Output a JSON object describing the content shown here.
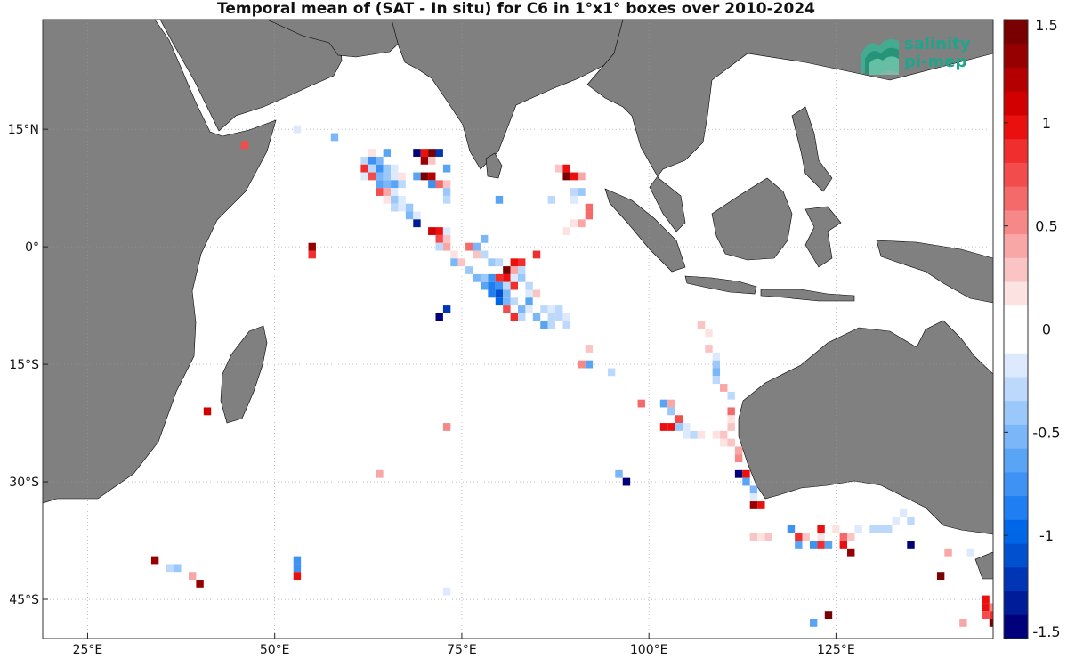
{
  "title": "Temporal mean of (SAT - In situ) for C6 in 1°x1° boxes over 2010-2024",
  "logo": {
    "line1": "salinity",
    "line2": "pi-mep"
  },
  "map": {
    "lon_range": [
      19,
      146
    ],
    "lat_range": [
      -50,
      29
    ],
    "land_color": "#808080",
    "grid": "dotted",
    "lon_ticks": [
      {
        "value": 25,
        "label": "25°E"
      },
      {
        "value": 50,
        "label": "50°E"
      },
      {
        "value": 75,
        "label": "75°E"
      },
      {
        "value": 100,
        "label": "100°E"
      },
      {
        "value": 125,
        "label": "125°E"
      }
    ],
    "lat_ticks": [
      {
        "value": 15,
        "label": "15°N"
      },
      {
        "value": 0,
        "label": "0°"
      },
      {
        "value": -15,
        "label": "15°S"
      },
      {
        "value": -30,
        "label": "30°S"
      },
      {
        "value": -45,
        "label": "45°S"
      }
    ]
  },
  "colorbar": {
    "range": [
      -1.5,
      1.5
    ],
    "ticks": [
      {
        "value": 1.5,
        "label": "1.5"
      },
      {
        "value": 1,
        "label": "1"
      },
      {
        "value": 0.5,
        "label": "0.5"
      },
      {
        "value": 0,
        "label": "0"
      },
      {
        "value": -0.5,
        "label": "-0.5"
      },
      {
        "value": -1,
        "label": "-1"
      },
      {
        "value": -1.5,
        "label": "-1.5"
      }
    ],
    "colors": [
      "#00007a",
      "#001c98",
      "#0035b6",
      "#0050d0",
      "#0066e8",
      "#1f7ef2",
      "#3d92f4",
      "#5aa4f6",
      "#7ab6f8",
      "#9ac8fa",
      "#bcd9fc",
      "#dde9fd",
      "#ffffff",
      "#ffffff",
      "#fde2e2",
      "#fbc4c4",
      "#f8a6a6",
      "#f68888",
      "#f46a6a",
      "#f24c4c",
      "#f02e2e",
      "#ea1010",
      "#d20000",
      "#b40000",
      "#960000",
      "#780000"
    ]
  },
  "chart_data": {
    "type": "heatmap",
    "title": "Temporal mean of (SAT - In situ) for C6 in 1°x1° boxes over 2010-2024",
    "units": "1°x1° boxes",
    "range": [
      -1.5,
      1.5
    ],
    "cells": [
      {
        "lon": 46,
        "lat": 13,
        "v": 0.7
      },
      {
        "lon": 53,
        "lat": 15,
        "v": -0.2
      },
      {
        "lon": 58,
        "lat": 14,
        "v": -0.5
      },
      {
        "lon": 62,
        "lat": 12,
        "v": -0.1
      },
      {
        "lon": 63,
        "lat": 12,
        "v": 0.2
      },
      {
        "lon": 65,
        "lat": 12,
        "v": -0.6
      },
      {
        "lon": 62,
        "lat": 11,
        "v": -0.3
      },
      {
        "lon": 63,
        "lat": 11,
        "v": -0.7
      },
      {
        "lon": 64,
        "lat": 11,
        "v": -0.5
      },
      {
        "lon": 62,
        "lat": 10,
        "v": 0.9
      },
      {
        "lon": 63,
        "lat": 10,
        "v": -0.3
      },
      {
        "lon": 64,
        "lat": 10,
        "v": -0.8
      },
      {
        "lon": 65,
        "lat": 10,
        "v": -0.4
      },
      {
        "lon": 66,
        "lat": 10,
        "v": -0.2
      },
      {
        "lon": 62,
        "lat": 9,
        "v": -0.2
      },
      {
        "lon": 63,
        "lat": 9,
        "v": 0.8
      },
      {
        "lon": 64,
        "lat": 9,
        "v": -0.5
      },
      {
        "lon": 65,
        "lat": 9,
        "v": -0.4
      },
      {
        "lon": 66,
        "lat": 9,
        "v": -0.2
      },
      {
        "lon": 67,
        "lat": 9,
        "v": 0.2
      },
      {
        "lon": 64,
        "lat": 8,
        "v": -0.6
      },
      {
        "lon": 65,
        "lat": 8,
        "v": -0.5
      },
      {
        "lon": 66,
        "lat": 8,
        "v": -0.6
      },
      {
        "lon": 67,
        "lat": 8,
        "v": -0.3
      },
      {
        "lon": 64,
        "lat": 7,
        "v": 0.8
      },
      {
        "lon": 65,
        "lat": 7,
        "v": 0.4
      },
      {
        "lon": 66,
        "lat": 7,
        "v": -0.2
      },
      {
        "lon": 65,
        "lat": 6,
        "v": 0.2
      },
      {
        "lon": 66,
        "lat": 6,
        "v": -0.4
      },
      {
        "lon": 67,
        "lat": 6,
        "v": -0.2
      },
      {
        "lon": 66,
        "lat": 5,
        "v": -0.3
      },
      {
        "lon": 67,
        "lat": 5,
        "v": -0.2
      },
      {
        "lon": 68,
        "lat": 5,
        "v": -0.4
      },
      {
        "lon": 68,
        "lat": 4,
        "v": -0.5
      },
      {
        "lon": 69,
        "lat": 4,
        "v": -0.2
      },
      {
        "lon": 68,
        "lat": 3,
        "v": -0.1
      },
      {
        "lon": 69,
        "lat": 3,
        "v": -1.3
      },
      {
        "lon": 69,
        "lat": 12,
        "v": -1.4
      },
      {
        "lon": 70,
        "lat": 12,
        "v": 1.0
      },
      {
        "lon": 71,
        "lat": 12,
        "v": 1.4
      },
      {
        "lon": 72,
        "lat": 12,
        "v": -1.2
      },
      {
        "lon": 70,
        "lat": 11,
        "v": 1.3
      },
      {
        "lon": 71,
        "lat": 11,
        "v": 0.3
      },
      {
        "lon": 73,
        "lat": 10,
        "v": -0.6
      },
      {
        "lon": 69,
        "lat": 9,
        "v": -0.6
      },
      {
        "lon": 70,
        "lat": 9,
        "v": 1.4
      },
      {
        "lon": 71,
        "lat": 9,
        "v": 1.2
      },
      {
        "lon": 71,
        "lat": 8,
        "v": -0.8
      },
      {
        "lon": 72,
        "lat": 8,
        "v": 0.6
      },
      {
        "lon": 73,
        "lat": 8,
        "v": 0.3
      },
      {
        "lon": 73,
        "lat": 7,
        "v": -0.4
      },
      {
        "lon": 73,
        "lat": 6,
        "v": -0.3
      },
      {
        "lon": 71,
        "lat": 2,
        "v": 1.1
      },
      {
        "lon": 72,
        "lat": 2,
        "v": 1.0
      },
      {
        "lon": 72,
        "lat": 1,
        "v": 0.8
      },
      {
        "lon": 73,
        "lat": 1,
        "v": 0.3
      },
      {
        "lon": 73,
        "lat": 2,
        "v": -0.2
      },
      {
        "lon": 72,
        "lat": 0,
        "v": -0.3
      },
      {
        "lon": 73,
        "lat": 0,
        "v": 0.4
      },
      {
        "lon": 74,
        "lat": -1,
        "v": 0.2
      },
      {
        "lon": 74,
        "lat": -2,
        "v": -0.5
      },
      {
        "lon": 75,
        "lat": -2,
        "v": 0.3
      },
      {
        "lon": 76,
        "lat": 0,
        "v": 0.6
      },
      {
        "lon": 77,
        "lat": -1,
        "v": 0.3
      },
      {
        "lon": 77,
        "lat": 0,
        "v": -0.5
      },
      {
        "lon": 78,
        "lat": 1,
        "v": -0.5
      },
      {
        "lon": 78,
        "lat": -1,
        "v": -0.3
      },
      {
        "lon": 79,
        "lat": -2,
        "v": -0.4
      },
      {
        "lon": 80,
        "lat": -2,
        "v": -0.3
      },
      {
        "lon": 82,
        "lat": -2,
        "v": 1.0
      },
      {
        "lon": 83,
        "lat": -2,
        "v": 0.9
      },
      {
        "lon": 81,
        "lat": -3,
        "v": 1.4
      },
      {
        "lon": 82,
        "lat": -3,
        "v": 0.4
      },
      {
        "lon": 83,
        "lat": -3,
        "v": -0.3
      },
      {
        "lon": 76,
        "lat": -3,
        "v": -0.4
      },
      {
        "lon": 77,
        "lat": -4,
        "v": -0.5
      },
      {
        "lon": 78,
        "lat": -4,
        "v": -0.4
      },
      {
        "lon": 79,
        "lat": -4,
        "v": -0.8
      },
      {
        "lon": 80,
        "lat": -4,
        "v": 0.9
      },
      {
        "lon": 81,
        "lat": -4,
        "v": 1.0
      },
      {
        "lon": 82,
        "lat": -4,
        "v": -0.2
      },
      {
        "lon": 83,
        "lat": -4,
        "v": -0.4
      },
      {
        "lon": 78,
        "lat": -5,
        "v": -0.6
      },
      {
        "lon": 79,
        "lat": -5,
        "v": -0.9
      },
      {
        "lon": 80,
        "lat": -5,
        "v": -0.7
      },
      {
        "lon": 81,
        "lat": -5,
        "v": -0.3
      },
      {
        "lon": 82,
        "lat": -5,
        "v": 0.9
      },
      {
        "lon": 84,
        "lat": -5,
        "v": -0.3
      },
      {
        "lon": 79,
        "lat": -6,
        "v": -0.9
      },
      {
        "lon": 80,
        "lat": -6,
        "v": -1.1
      },
      {
        "lon": 81,
        "lat": -6,
        "v": -0.5
      },
      {
        "lon": 84,
        "lat": -6,
        "v": -0.2
      },
      {
        "lon": 85,
        "lat": -6,
        "v": 0.3
      },
      {
        "lon": 80,
        "lat": -7,
        "v": -1.0
      },
      {
        "lon": 81,
        "lat": -7,
        "v": -0.5
      },
      {
        "lon": 82,
        "lat": -7,
        "v": -0.3
      },
      {
        "lon": 84,
        "lat": -7,
        "v": -0.6
      },
      {
        "lon": 85,
        "lat": -7,
        "v": -0.1
      },
      {
        "lon": 83,
        "lat": -8,
        "v": -0.5
      },
      {
        "lon": 84,
        "lat": -8,
        "v": -0.2
      },
      {
        "lon": 85,
        "lat": -8,
        "v": -0.1
      },
      {
        "lon": 86,
        "lat": -8,
        "v": -0.3
      },
      {
        "lon": 87,
        "lat": -8,
        "v": -0.2
      },
      {
        "lon": 88,
        "lat": -8,
        "v": -0.3
      },
      {
        "lon": 83,
        "lat": -9,
        "v": -0.3
      },
      {
        "lon": 85,
        "lat": -9,
        "v": -0.5
      },
      {
        "lon": 87,
        "lat": -9,
        "v": -0.3
      },
      {
        "lon": 88,
        "lat": -9,
        "v": -0.3
      },
      {
        "lon": 89,
        "lat": -9,
        "v": -0.2
      },
      {
        "lon": 86,
        "lat": -10,
        "v": -0.6
      },
      {
        "lon": 87,
        "lat": -10,
        "v": -0.3
      },
      {
        "lon": 89,
        "lat": -10,
        "v": -0.3
      },
      {
        "lon": 82,
        "lat": -9,
        "v": 0.9
      },
      {
        "lon": 81,
        "lat": -8,
        "v": 0.7
      },
      {
        "lon": 73,
        "lat": -8,
        "v": -1.2
      },
      {
        "lon": 72,
        "lat": -9,
        "v": -1.4
      },
      {
        "lon": 88,
        "lat": 10,
        "v": 0.3
      },
      {
        "lon": 89,
        "lat": 10,
        "v": 1.0
      },
      {
        "lon": 89,
        "lat": 9,
        "v": 1.4
      },
      {
        "lon": 90,
        "lat": 9,
        "v": 1.0
      },
      {
        "lon": 91,
        "lat": 9,
        "v": 0.4
      },
      {
        "lon": 90,
        "lat": 7,
        "v": -0.3
      },
      {
        "lon": 91,
        "lat": 7,
        "v": -0.4
      },
      {
        "lon": 86,
        "lat": 6,
        "v": -0.1
      },
      {
        "lon": 87,
        "lat": 6,
        "v": -0.3
      },
      {
        "lon": 90,
        "lat": 6,
        "v": -0.2
      },
      {
        "lon": 92,
        "lat": 5,
        "v": 0.6
      },
      {
        "lon": 92,
        "lat": 4,
        "v": 0.6
      },
      {
        "lon": 91,
        "lat": 3,
        "v": 0.4
      },
      {
        "lon": 89,
        "lat": 2,
        "v": 0.2
      },
      {
        "lon": 90,
        "lat": 3,
        "v": 0.2
      },
      {
        "lon": 80,
        "lat": 6,
        "v": -0.6
      },
      {
        "lon": 85,
        "lat": -1,
        "v": 0.9
      },
      {
        "lon": 92,
        "lat": -13,
        "v": 0.3
      },
      {
        "lon": 91,
        "lat": -15,
        "v": 0.5
      },
      {
        "lon": 92,
        "lat": -15,
        "v": -0.6
      },
      {
        "lon": 95,
        "lat": -16,
        "v": -0.3
      },
      {
        "lon": 98,
        "lat": -19,
        "v": -0.1
      },
      {
        "lon": 99,
        "lat": -20,
        "v": 0.6
      },
      {
        "lon": 96,
        "lat": -29,
        "v": -0.5
      },
      {
        "lon": 97,
        "lat": -30,
        "v": -1.4
      },
      {
        "lon": 102,
        "lat": -20,
        "v": -0.6
      },
      {
        "lon": 103,
        "lat": -20,
        "v": 0.4
      },
      {
        "lon": 103,
        "lat": -21,
        "v": -0.4
      },
      {
        "lon": 104,
        "lat": -22,
        "v": 0.8
      },
      {
        "lon": 102,
        "lat": -23,
        "v": 1.0
      },
      {
        "lon": 103,
        "lat": -23,
        "v": 1.0
      },
      {
        "lon": 104,
        "lat": -23,
        "v": -0.4
      },
      {
        "lon": 105,
        "lat": -23,
        "v": -0.2
      },
      {
        "lon": 105,
        "lat": -24,
        "v": -0.2
      },
      {
        "lon": 106,
        "lat": -24,
        "v": -0.3
      },
      {
        "lon": 107,
        "lat": -24,
        "v": 0.2
      },
      {
        "lon": 108,
        "lat": -25,
        "v": 0.1
      },
      {
        "lon": 109,
        "lat": -24,
        "v": 0.2
      },
      {
        "lon": 110,
        "lat": -25,
        "v": 0.2
      },
      {
        "lon": 110,
        "lat": -24,
        "v": 0.3
      },
      {
        "lon": 107,
        "lat": -10,
        "v": 0.3
      },
      {
        "lon": 108,
        "lat": -11,
        "v": 0.2
      },
      {
        "lon": 108,
        "lat": -12,
        "v": -0.1
      },
      {
        "lon": 108,
        "lat": -13,
        "v": 0.3
      },
      {
        "lon": 109,
        "lat": -14,
        "v": -0.2
      },
      {
        "lon": 109,
        "lat": -15,
        "v": -0.4
      },
      {
        "lon": 109,
        "lat": -16,
        "v": -0.5
      },
      {
        "lon": 109,
        "lat": -17,
        "v": -0.3
      },
      {
        "lon": 110,
        "lat": -18,
        "v": 0.4
      },
      {
        "lon": 111,
        "lat": -19,
        "v": -0.3
      },
      {
        "lon": 111,
        "lat": -21,
        "v": 0.6
      },
      {
        "lon": 111,
        "lat": -22,
        "v": 0.2
      },
      {
        "lon": 111,
        "lat": -23,
        "v": 0.3
      },
      {
        "lon": 111,
        "lat": -25,
        "v": 0.3
      },
      {
        "lon": 112,
        "lat": -26,
        "v": 0.4
      },
      {
        "lon": 112,
        "lat": -27,
        "v": 0.5
      },
      {
        "lon": 112,
        "lat": -29,
        "v": -1.4
      },
      {
        "lon": 113,
        "lat": -29,
        "v": 1.0
      },
      {
        "lon": 113,
        "lat": -30,
        "v": -0.6
      },
      {
        "lon": 114,
        "lat": -31,
        "v": -0.5
      },
      {
        "lon": 114,
        "lat": -33,
        "v": 1.3
      },
      {
        "lon": 115,
        "lat": -33,
        "v": 1.0
      },
      {
        "lon": 114,
        "lat": -32,
        "v": -0.2
      },
      {
        "lon": 114,
        "lat": -37,
        "v": 0.3
      },
      {
        "lon": 115,
        "lat": -37,
        "v": 0.2
      },
      {
        "lon": 116,
        "lat": -37,
        "v": 0.3
      },
      {
        "lon": 119,
        "lat": -36,
        "v": -0.7
      },
      {
        "lon": 120,
        "lat": -37,
        "v": 0.9
      },
      {
        "lon": 120,
        "lat": -38,
        "v": -0.6
      },
      {
        "lon": 121,
        "lat": -37,
        "v": 0.3
      },
      {
        "lon": 122,
        "lat": -38,
        "v": -0.7
      },
      {
        "lon": 123,
        "lat": -38,
        "v": 0.9
      },
      {
        "lon": 123,
        "lat": -36,
        "v": 1.0
      },
      {
        "lon": 124,
        "lat": -38,
        "v": -0.6
      },
      {
        "lon": 123,
        "lat": -37,
        "v": 0.2
      },
      {
        "lon": 125,
        "lat": -36,
        "v": 0.2
      },
      {
        "lon": 126,
        "lat": -37,
        "v": 0.6
      },
      {
        "lon": 126,
        "lat": -38,
        "v": 1.0
      },
      {
        "lon": 127,
        "lat": -37,
        "v": 0.3
      },
      {
        "lon": 127,
        "lat": -39,
        "v": 1.3
      },
      {
        "lon": 128,
        "lat": -36,
        "v": -0.2
      },
      {
        "lon": 130,
        "lat": -36,
        "v": -0.3
      },
      {
        "lon": 131,
        "lat": -36,
        "v": -0.3
      },
      {
        "lon": 132,
        "lat": -36,
        "v": -0.3
      },
      {
        "lon": 133,
        "lat": -35,
        "v": -0.2
      },
      {
        "lon": 134,
        "lat": -34,
        "v": -0.2
      },
      {
        "lon": 135,
        "lat": -35,
        "v": -0.3
      },
      {
        "lon": 135,
        "lat": -38,
        "v": -1.4
      },
      {
        "lon": 140,
        "lat": -39,
        "v": 0.4
      },
      {
        "lon": 143,
        "lat": -39,
        "v": -0.2
      },
      {
        "lon": 139,
        "lat": -42,
        "v": 1.4
      },
      {
        "lon": 145,
        "lat": -45,
        "v": 1.0
      },
      {
        "lon": 145,
        "lat": -46,
        "v": 1.0
      },
      {
        "lon": 145,
        "lat": -47,
        "v": 0.7
      },
      {
        "lon": 146,
        "lat": -46,
        "v": 0.5
      },
      {
        "lon": 146,
        "lat": -47,
        "v": 0.9
      },
      {
        "lon": 146,
        "lat": -48,
        "v": 1.4
      },
      {
        "lon": 142,
        "lat": -48,
        "v": 0.4
      },
      {
        "lon": 124,
        "lat": -47,
        "v": 1.4
      },
      {
        "lon": 122,
        "lat": -48,
        "v": -0.6
      },
      {
        "lon": 55,
        "lat": 0,
        "v": 1.3
      },
      {
        "lon": 55,
        "lat": -1,
        "v": 0.9
      },
      {
        "lon": 41,
        "lat": -21,
        "v": 1.1
      },
      {
        "lon": 73,
        "lat": -23,
        "v": 0.5
      },
      {
        "lon": 64,
        "lat": -29,
        "v": 0.4
      },
      {
        "lon": 34,
        "lat": -40,
        "v": 1.3
      },
      {
        "lon": 36,
        "lat": -41,
        "v": -0.3
      },
      {
        "lon": 37,
        "lat": -41,
        "v": -0.4
      },
      {
        "lon": 39,
        "lat": -42,
        "v": 0.4
      },
      {
        "lon": 40,
        "lat": -43,
        "v": 1.3
      },
      {
        "lon": 53,
        "lat": -40,
        "v": -0.8
      },
      {
        "lon": 53,
        "lat": -41,
        "v": -0.7
      },
      {
        "lon": 53,
        "lat": -42,
        "v": 1.0
      },
      {
        "lon": 73,
        "lat": -44,
        "v": -0.2
      }
    ]
  }
}
